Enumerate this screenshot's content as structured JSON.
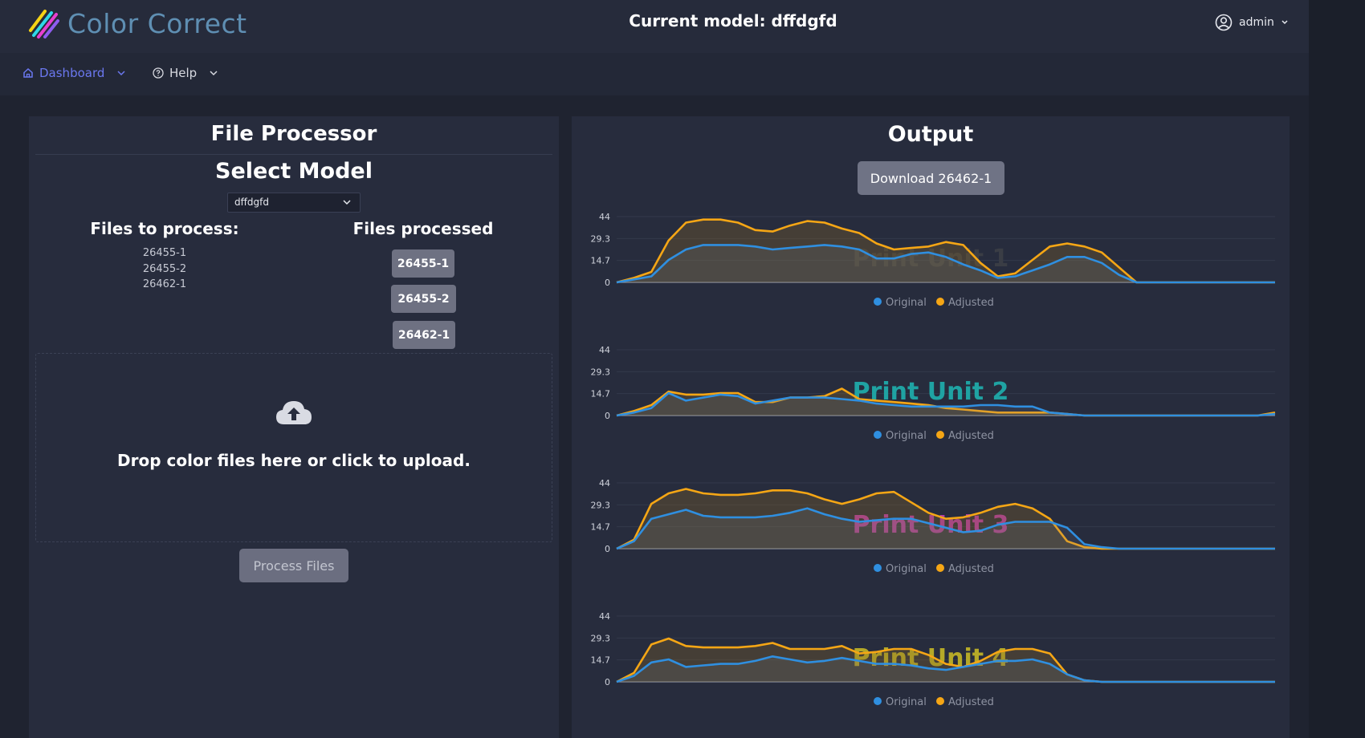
{
  "app": {
    "brand": "Color Correct",
    "current_model_label": "Current model: dffdgfd",
    "user": "admin"
  },
  "nav": {
    "dashboard": "Dashboard",
    "help": "Help"
  },
  "file_processor": {
    "title": "File Processor",
    "select_title": "Select Model",
    "selected_model": "dffdgfd",
    "to_process_heading": "Files to process:",
    "to_process": [
      "26455-1",
      "26455-2",
      "26462-1"
    ],
    "processed_heading": "Files processed",
    "processed": [
      "26455-1",
      "26455-2",
      "26462-1"
    ],
    "drop_text": "Drop color files here or click to upload.",
    "process_button": "Process Files"
  },
  "output": {
    "title": "Output",
    "download_button": "Download 26462-1"
  },
  "colors": {
    "original": "#2f8fe0",
    "adjusted": "#f5a615",
    "unit1": "#3a3d45",
    "unit2": "#1fa3a3",
    "unit3": "#b33aa8",
    "unit4": "#b5a928"
  },
  "chart_data": [
    {
      "type": "area",
      "title": "Print Unit 1",
      "ylim": [
        0,
        44
      ],
      "yticks": [
        "0",
        "14.7",
        "29.3",
        "44"
      ],
      "legend": "bottom",
      "series": [
        {
          "name": "Original",
          "values": [
            0,
            2,
            4,
            15,
            22,
            25,
            25,
            25,
            24,
            22,
            23,
            24,
            25,
            24,
            22,
            16,
            16,
            19,
            20,
            17,
            12,
            8,
            3,
            4,
            8,
            12,
            17,
            17,
            13,
            5,
            0,
            0,
            0,
            0,
            0,
            0,
            0,
            0,
            0
          ]
        },
        {
          "name": "Adjusted",
          "values": [
            0,
            3,
            7,
            28,
            40,
            42,
            42,
            40,
            35,
            34,
            38,
            41,
            40,
            36,
            33,
            26,
            22,
            23,
            24,
            27,
            25,
            13,
            4,
            6,
            15,
            24,
            26,
            24,
            20,
            10,
            0,
            0,
            0,
            0,
            0,
            0,
            0,
            0,
            0
          ]
        }
      ]
    },
    {
      "type": "area",
      "title": "Print Unit 2",
      "ylim": [
        0,
        44
      ],
      "yticks": [
        "0",
        "14.7",
        "29.3",
        "44"
      ],
      "legend": "bottom",
      "series": [
        {
          "name": "Original",
          "values": [
            0,
            2,
            5,
            15,
            10,
            12,
            14,
            13,
            8,
            10,
            12,
            12,
            12,
            11,
            10,
            8,
            7,
            6,
            6,
            6,
            6,
            7,
            7,
            6,
            6,
            2,
            1,
            0,
            0,
            0,
            0,
            0,
            0,
            0,
            0,
            0,
            0,
            0,
            1
          ]
        },
        {
          "name": "Adjusted",
          "values": [
            0,
            3,
            7,
            16,
            14,
            14,
            15,
            15,
            9,
            9,
            12,
            12,
            13,
            18,
            11,
            10,
            9,
            8,
            7,
            5,
            4,
            3,
            2,
            2,
            2,
            2,
            1,
            0,
            0,
            0,
            0,
            0,
            0,
            0,
            0,
            0,
            0,
            0,
            2
          ]
        }
      ]
    },
    {
      "type": "area",
      "title": "Print Unit 3",
      "ylim": [
        0,
        44
      ],
      "yticks": [
        "0",
        "14.7",
        "29.3",
        "44"
      ],
      "legend": "bottom",
      "series": [
        {
          "name": "Original",
          "values": [
            0,
            5,
            20,
            23,
            26,
            22,
            21,
            21,
            21,
            22,
            24,
            27,
            23,
            20,
            18,
            19,
            20,
            20,
            17,
            14,
            11,
            12,
            16,
            18,
            18,
            18,
            14,
            3,
            1,
            0,
            0,
            0,
            0,
            0,
            0,
            0,
            0,
            0,
            0
          ]
        },
        {
          "name": "Adjusted",
          "values": [
            0,
            6,
            30,
            37,
            40,
            37,
            36,
            36,
            37,
            39,
            39,
            37,
            33,
            30,
            33,
            37,
            38,
            31,
            24,
            20,
            21,
            24,
            28,
            30,
            27,
            20,
            5,
            1,
            0,
            0,
            0,
            0,
            0,
            0,
            0,
            0,
            0,
            0,
            0
          ]
        }
      ]
    },
    {
      "type": "area",
      "title": "Print Unit 4",
      "ylim": [
        0,
        44
      ],
      "yticks": [
        "0",
        "14.7",
        "29.3",
        "44"
      ],
      "legend": "bottom",
      "series": [
        {
          "name": "Original",
          "values": [
            0,
            4,
            13,
            15,
            10,
            11,
            12,
            12,
            14,
            17,
            15,
            13,
            14,
            16,
            14,
            12,
            12,
            11,
            9,
            8,
            10,
            12,
            14,
            14,
            15,
            12,
            5,
            1,
            0,
            0,
            0,
            0,
            0,
            0,
            0,
            0,
            0,
            0,
            0
          ]
        },
        {
          "name": "Adjusted",
          "values": [
            0,
            6,
            25,
            29,
            24,
            23,
            23,
            23,
            24,
            26,
            22,
            22,
            22,
            24,
            19,
            20,
            22,
            22,
            18,
            12,
            10,
            14,
            20,
            22,
            22,
            19,
            5,
            1,
            0,
            0,
            0,
            0,
            0,
            0,
            0,
            0,
            0,
            0,
            0
          ]
        }
      ]
    }
  ]
}
